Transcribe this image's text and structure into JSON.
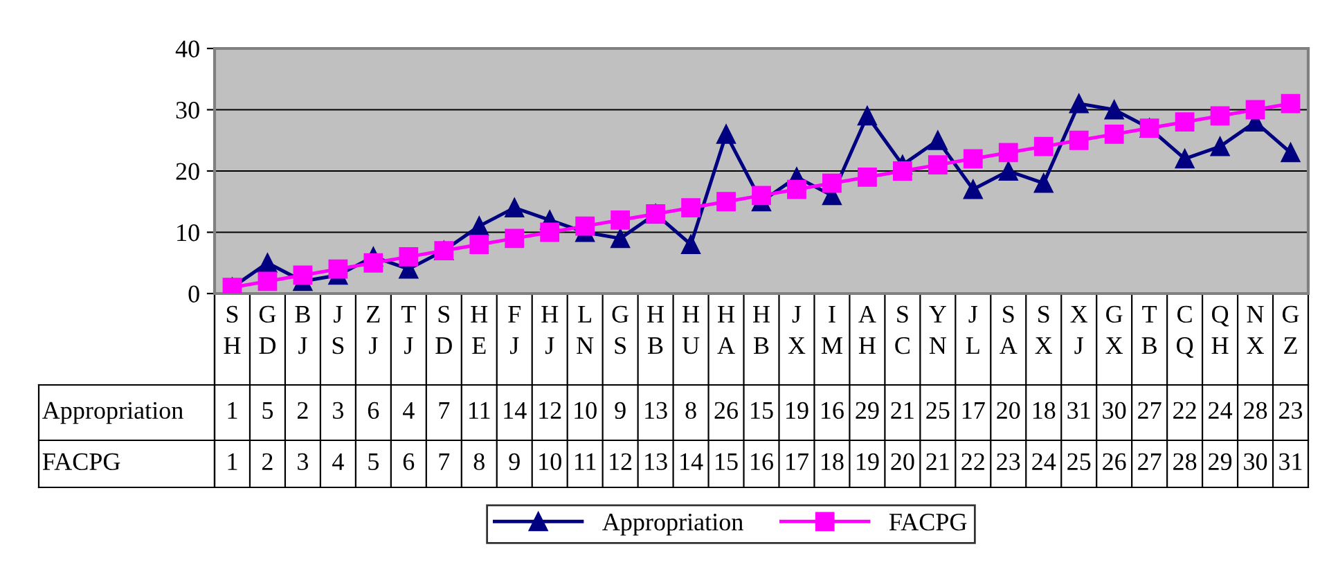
{
  "chart_data": {
    "type": "line",
    "categories": [
      "SH",
      "GD",
      "BJ",
      "JS",
      "ZJ",
      "TJ",
      "SD",
      "HE",
      "FJ",
      "HJ",
      "LN",
      "GS",
      "HB",
      "HU",
      "HA",
      "HB",
      "JX",
      "IM",
      "AH",
      "SC",
      "YN",
      "JL",
      "SA",
      "SX",
      "XJ",
      "GX",
      "TB",
      "CQ",
      "QH",
      "NX",
      "GZ"
    ],
    "series": [
      {
        "name": "Appropriation",
        "color": "#000080",
        "marker": "triangle",
        "values": [
          1,
          5,
          2,
          3,
          6,
          4,
          7,
          11,
          14,
          12,
          10,
          9,
          13,
          8,
          26,
          15,
          19,
          16,
          29,
          21,
          25,
          17,
          20,
          18,
          31,
          30,
          27,
          22,
          24,
          28,
          23
        ]
      },
      {
        "name": "FACPG",
        "color": "#ff00ff",
        "marker": "square",
        "values": [
          1,
          2,
          3,
          4,
          5,
          6,
          7,
          8,
          9,
          10,
          11,
          12,
          13,
          14,
          15,
          16,
          17,
          18,
          19,
          20,
          21,
          22,
          23,
          24,
          25,
          26,
          27,
          28,
          29,
          30,
          31
        ]
      }
    ],
    "ylim": [
      0,
      40
    ],
    "yticks": [
      0,
      10,
      20,
      30,
      40
    ],
    "grid": "y",
    "legend": "bottom",
    "data_labels": true,
    "line_style": "solid"
  }
}
